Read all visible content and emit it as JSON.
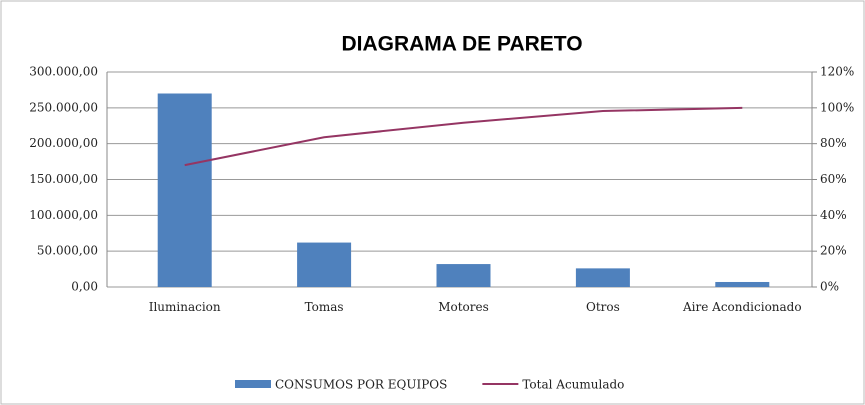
{
  "chart_data": {
    "type": "pareto",
    "title": "DIAGRAMA DE PARETO",
    "categories": [
      "Iluminacion",
      "Tomas",
      "Motores",
      "Otros",
      "Aire Acondicionado"
    ],
    "series": [
      {
        "name": "CONSUMOS POR EQUIPOS",
        "color": "#4f81bd",
        "type": "bar",
        "values": [
          270000,
          62000,
          32000,
          26000,
          7000
        ]
      },
      {
        "name": "Total Acumulado",
        "color": "#953563",
        "type": "line",
        "axis": "y2",
        "values": [
          68,
          83.6,
          91.7,
          98.2,
          100
        ]
      }
    ],
    "ylim": [
      0,
      300000
    ],
    "yticks": [
      {
        "value": 0,
        "label": "0,00"
      },
      {
        "value": 50000,
        "label": "50.000,00"
      },
      {
        "value": 100000,
        "label": "100.000,00"
      },
      {
        "value": 150000,
        "label": "150.000,00"
      },
      {
        "value": 200000,
        "label": "200.000,00"
      },
      {
        "value": 250000,
        "label": "250.000,00"
      },
      {
        "value": 300000,
        "label": "300.000,00"
      }
    ],
    "y2lim": [
      0,
      120
    ],
    "y2ticks": [
      {
        "value": 0,
        "label": "0%"
      },
      {
        "value": 20,
        "label": "20%"
      },
      {
        "value": 40,
        "label": "40%"
      },
      {
        "value": 60,
        "label": "60%"
      },
      {
        "value": 80,
        "label": "80%"
      },
      {
        "value": 100,
        "label": "100%"
      },
      {
        "value": 120,
        "label": "120%"
      }
    ],
    "grid": true,
    "legend": "bottom"
  }
}
